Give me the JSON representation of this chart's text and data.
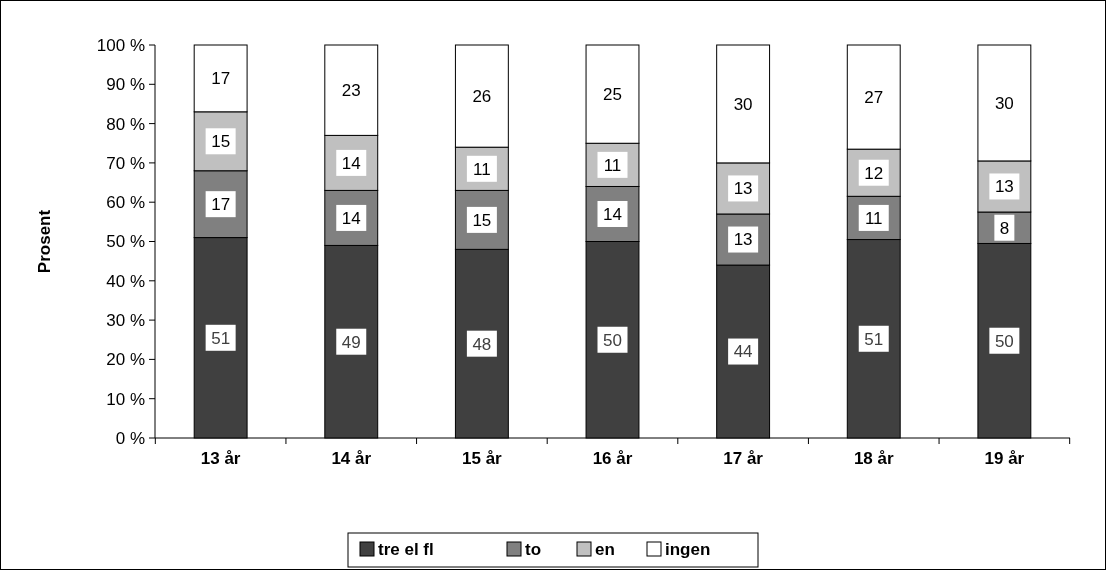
{
  "chart_data": {
    "type": "bar",
    "stacked": true,
    "ylabel": "Prosent",
    "categories": [
      "13 år",
      "14 år",
      "15 år",
      "16 år",
      "17 år",
      "18 år",
      "19 år"
    ],
    "series": [
      {
        "name": "tre el fl",
        "color": "#404040",
        "values": [
          51,
          49,
          48,
          50,
          44,
          50.5,
          49.5
        ],
        "value_labels": [
          "51",
          "49",
          "48",
          "50",
          "44",
          "51",
          "50"
        ]
      },
      {
        "name": "to",
        "color": "#808080",
        "values": [
          17,
          14,
          15,
          14,
          13,
          11,
          8
        ],
        "value_labels": [
          "17",
          "14",
          "15",
          "14",
          "13",
          "11",
          "8"
        ]
      },
      {
        "name": "en",
        "color": "#c0c0c0",
        "values": [
          15,
          14,
          11,
          11,
          13,
          12,
          13
        ],
        "value_labels": [
          "15",
          "14",
          "11",
          "11",
          "13",
          "12",
          "13"
        ]
      },
      {
        "name": "ingen",
        "color": "#ffffff",
        "values": [
          17,
          23,
          26,
          25,
          30,
          26.5,
          29.5
        ],
        "value_labels": [
          "17",
          "23",
          "26",
          "25",
          "30",
          "27",
          "30"
        ]
      }
    ],
    "ylim": [
      0,
      100
    ],
    "yticks": [
      {
        "value": 0,
        "label": "0 %"
      },
      {
        "value": 10,
        "label": "10 %"
      },
      {
        "value": 20,
        "label": "20 %"
      },
      {
        "value": 30,
        "label": "30 %"
      },
      {
        "value": 40,
        "label": "40 %"
      },
      {
        "value": 50,
        "label": "50 %"
      },
      {
        "value": 60,
        "label": "60 %"
      },
      {
        "value": 70,
        "label": "70 %"
      },
      {
        "value": 80,
        "label": "80 %"
      },
      {
        "value": 90,
        "label": "90 %"
      },
      {
        "value": 100,
        "label": "100 %"
      }
    ],
    "grid": false,
    "legend": "bottom"
  }
}
